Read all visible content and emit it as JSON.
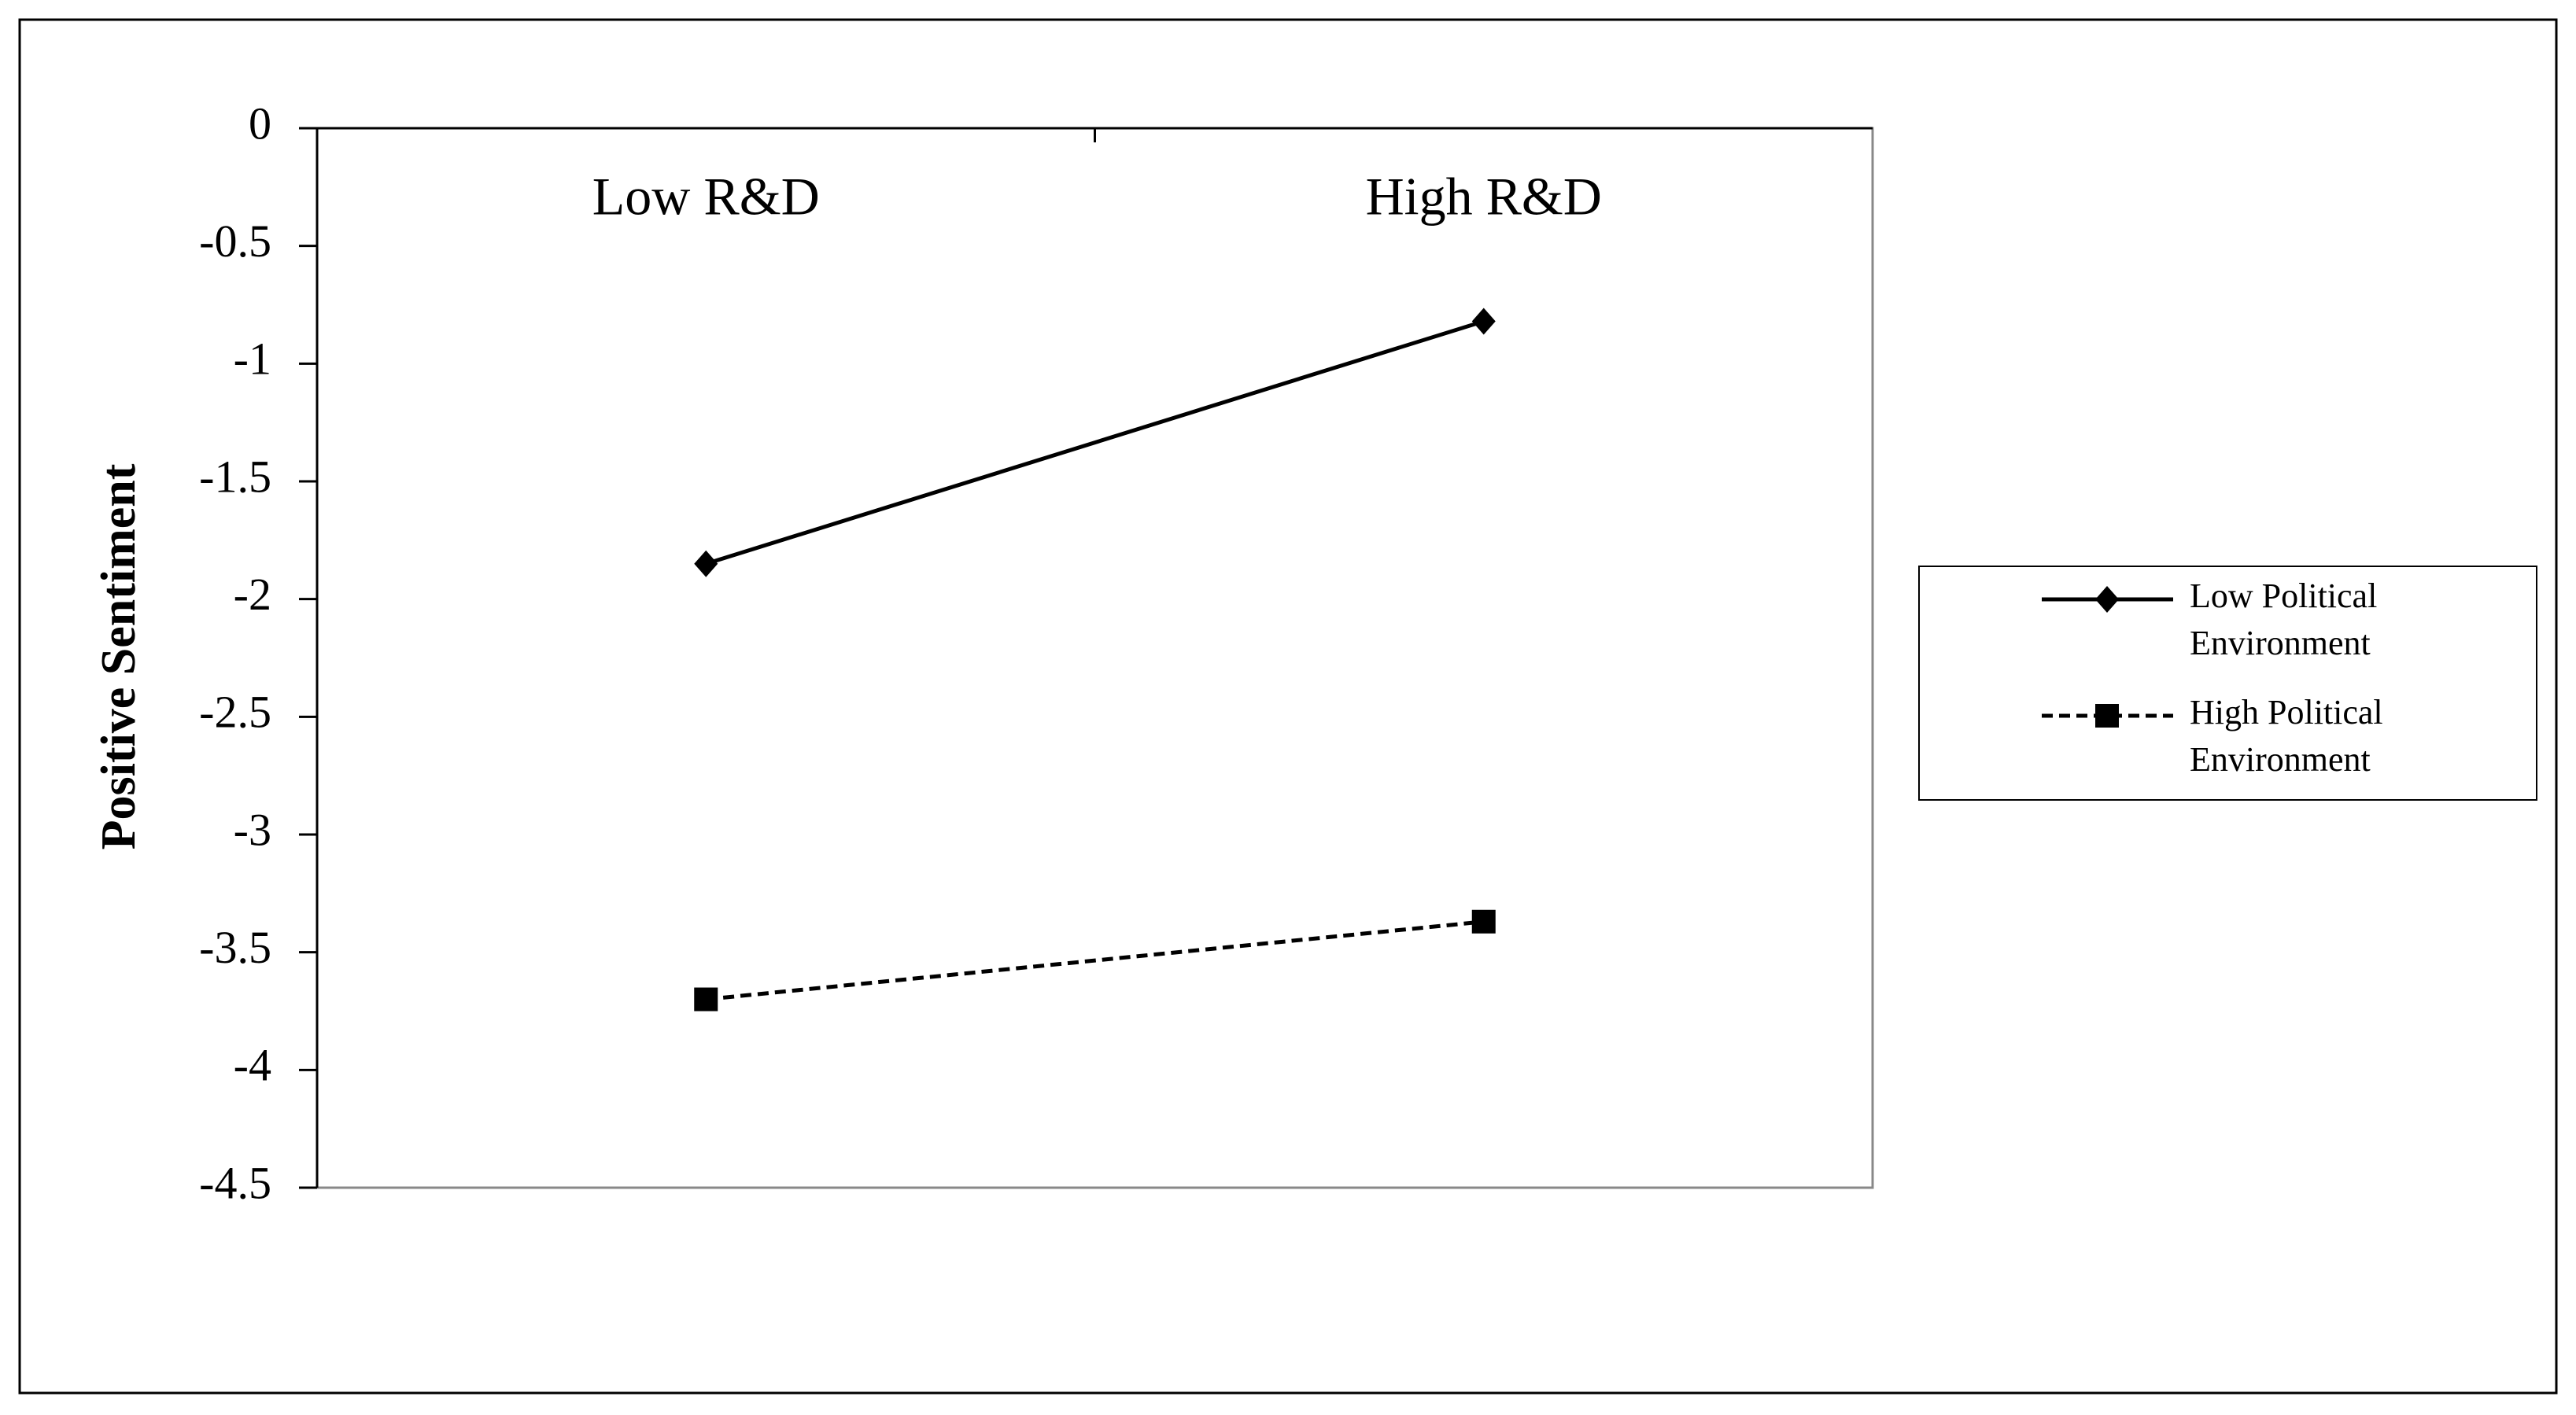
{
  "chart_data": {
    "type": "line",
    "y_label": "Positive Sentiment",
    "categories": [
      "Low R&D",
      "High R&D"
    ],
    "series": [
      {
        "name": "Low Political Environment",
        "color": "#000000",
        "marker": "diamond",
        "linestyle": "solid",
        "values": [
          -1.85,
          -0.82
        ]
      },
      {
        "name": "High Political Environment",
        "color": "#000000",
        "marker": "square",
        "linestyle": "dashed",
        "values": [
          -3.7,
          -3.37
        ]
      }
    ],
    "ylim": [
      -4.5,
      0
    ],
    "yticks": [
      0,
      -0.5,
      -1,
      -1.5,
      -2,
      -2.5,
      -3,
      -3.5,
      -4,
      -4.5
    ],
    "grid": false,
    "legend": "right"
  }
}
